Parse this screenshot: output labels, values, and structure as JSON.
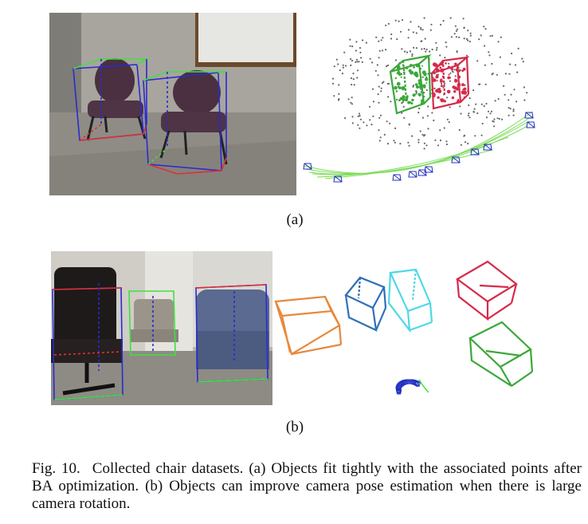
{
  "panels": [
    {
      "id": "a",
      "label": "(a)"
    },
    {
      "id": "b",
      "label": "(b)"
    }
  ],
  "caption": {
    "fig_label": "Fig. 10.",
    "text": "Collected chair datasets. (a) Objects fit tightly with the associated points after BA optimization. (b) Objects can improve camera pose estimation when there is large camera rotation."
  },
  "colors": {
    "cube_green": "#3aa83a",
    "cube_red": "#d62b4a",
    "cube_orange": "#e8883a",
    "cube_blue": "#2f6fb8",
    "cube_cyan": "#4fd8e8",
    "camera_blue": "#2030c0",
    "trajectory_green": "#7ddc5a",
    "box_blue": "#2a2ad0",
    "box_green": "#40e040",
    "box_red": "#e03030"
  }
}
